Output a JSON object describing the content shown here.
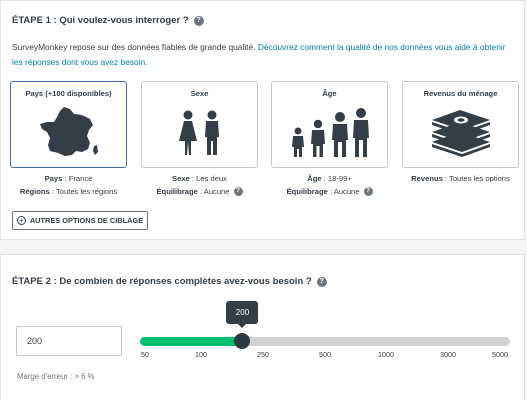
{
  "step1": {
    "title": "ÉTAPE 1 : Qui voulez-vous interroger ?",
    "desc_text": "SurveyMonkey repose sur des données fiables de grande qualité. ",
    "desc_link": "Découvrez comment la qualité de nos données vous aide à obtenir les réponses dont vous avez besoin.",
    "cards": [
      {
        "title": "Pays (+100 disponibles)",
        "icon": "france-map-icon",
        "selected": true
      },
      {
        "title": "Sexe",
        "icon": "female-male-icon",
        "selected": false
      },
      {
        "title": "Âge",
        "icon": "age-group-icon",
        "selected": false
      },
      {
        "title": "Revenus du ménage",
        "icon": "money-stack-icon",
        "selected": false
      }
    ],
    "info": {
      "country_label": "Pays",
      "country_value": " : France",
      "regions_label": "Régions",
      "regions_value": " : Toutes les régions",
      "sex_label": "Sexe",
      "sex_value": " : Les deux",
      "balance_label": "Équilibrage",
      "balance_value": " : Aucune",
      "age_label": "Âge",
      "age_value": " : 18-99+",
      "age_balance_label": "Équilibrage",
      "age_balance_value": " : Aucune",
      "income_label": "Revenus",
      "income_value": " : Toutes les options"
    },
    "more_button": "AUTRES OPTIONS DE CIBLAGE"
  },
  "step2": {
    "title": "ÉTAPE 2 : De combien de réponses complètes avez-vous besoin ?",
    "input_value": "200",
    "slider": {
      "value": 200,
      "tooltip": "200",
      "ticks": [
        "50",
        "100",
        "250",
        "500",
        "1000",
        "3000",
        "5000"
      ],
      "fill_fraction": 0.277
    },
    "margin_text": "Marge d'erreur : > 6 %"
  },
  "colors": {
    "accent_green": "#00bf6f",
    "link_blue": "#007faa",
    "selected_border": "#3a6fb0",
    "dark": "#333e48"
  }
}
